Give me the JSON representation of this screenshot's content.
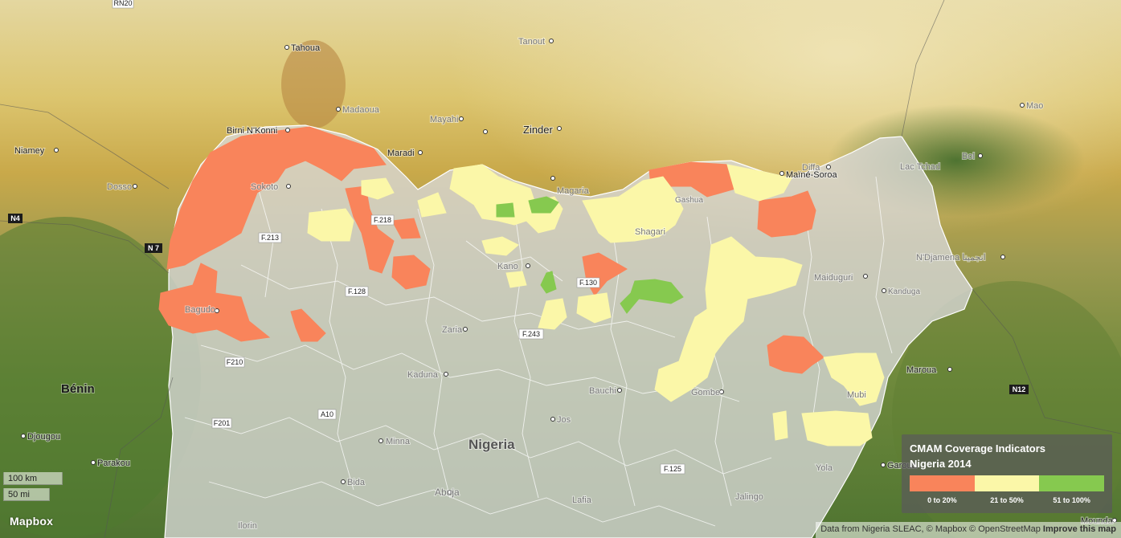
{
  "map": {
    "country_labels": [
      {
        "id": "nigeria",
        "text": "Nigeria"
      },
      {
        "id": "benin",
        "text": "Bénin"
      }
    ],
    "cities": [
      {
        "id": "tahoua",
        "text": "Tahoua"
      },
      {
        "id": "tanout",
        "text": "Tanout"
      },
      {
        "id": "madaoua",
        "text": "Madaoua"
      },
      {
        "id": "birni-nkonni",
        "text": "Birni N'Konni"
      },
      {
        "id": "mayahi",
        "text": "Mayahi"
      },
      {
        "id": "zinder",
        "text": "Zinder"
      },
      {
        "id": "maradi",
        "text": "Maradi"
      },
      {
        "id": "niamey",
        "text": "Niamey"
      },
      {
        "id": "dosso",
        "text": "Dosso"
      },
      {
        "id": "magaria",
        "text": "Magaria"
      },
      {
        "id": "diffa",
        "text": "Diffa"
      },
      {
        "id": "maine-soroa",
        "text": "Maïné-Soroa"
      },
      {
        "id": "lac-tchad",
        "text": "Lac Tchad"
      },
      {
        "id": "mao",
        "text": "Mao"
      },
      {
        "id": "bol",
        "text": "Bol"
      },
      {
        "id": "ndjamena",
        "text": "N'Djamena انجمينا"
      },
      {
        "id": "maiduguri",
        "text": "Maiduguri"
      },
      {
        "id": "kanduga",
        "text": "Kanduga"
      },
      {
        "id": "sokoto",
        "text": "Sokoto"
      },
      {
        "id": "kano",
        "text": "Kano"
      },
      {
        "id": "zaria",
        "text": "Zaria"
      },
      {
        "id": "kaduna",
        "text": "Kaduna"
      },
      {
        "id": "bauchi",
        "text": "Bauchi"
      },
      {
        "id": "gombe",
        "text": "Gombe"
      },
      {
        "id": "jos",
        "text": "Jos"
      },
      {
        "id": "minna",
        "text": "Minna"
      },
      {
        "id": "bida",
        "text": "Bida"
      },
      {
        "id": "abuja",
        "text": "Abuja"
      },
      {
        "id": "ilorin",
        "text": "Ilorin"
      },
      {
        "id": "lafia",
        "text": "Lafia"
      },
      {
        "id": "jalingo",
        "text": "Jalingo"
      },
      {
        "id": "yola",
        "text": "Yola"
      },
      {
        "id": "mubi",
        "text": "Mubi"
      },
      {
        "id": "maroua",
        "text": "Maroua"
      },
      {
        "id": "garoua",
        "text": "Garoua"
      },
      {
        "id": "mounda",
        "text": "Mounda"
      },
      {
        "id": "djougou",
        "text": "Djougou"
      },
      {
        "id": "parakou",
        "text": "Parakou"
      },
      {
        "id": "bagudo",
        "text": "Bagudo"
      },
      {
        "id": "shagari",
        "text": "Shagari"
      },
      {
        "id": "gashua",
        "text": "Gashua"
      }
    ],
    "roads": [
      {
        "id": "rn20",
        "text": "RN20"
      },
      {
        "id": "n4",
        "text": "N4"
      },
      {
        "id": "n7",
        "text": "N 7"
      },
      {
        "id": "f213",
        "text": "F.213"
      },
      {
        "id": "f218",
        "text": "F.218"
      },
      {
        "id": "f128",
        "text": "F.128"
      },
      {
        "id": "f130",
        "text": "F.130"
      },
      {
        "id": "f243",
        "text": "F.243"
      },
      {
        "id": "f210",
        "text": "F210"
      },
      {
        "id": "f201",
        "text": "F201"
      },
      {
        "id": "a10",
        "text": "A10"
      },
      {
        "id": "f125",
        "text": "F.125"
      },
      {
        "id": "n12",
        "text": "N12"
      }
    ]
  },
  "colors": {
    "low": "#f9845b",
    "mid": "#fbf7a8",
    "high": "#86c94f",
    "nigeria_overlay": "#d8d8d8"
  },
  "legend": {
    "title": "CMAM Coverage Indicators",
    "subtitle": "Nigeria 2014",
    "items": [
      {
        "label": "0 to 20%",
        "color": "#f9845b"
      },
      {
        "label": "21 to 50%",
        "color": "#fbf7a8"
      },
      {
        "label": "51 to 100%",
        "color": "#86c94f"
      }
    ]
  },
  "scale": {
    "km": "100 km",
    "mi": "50 mi"
  },
  "logo": "Mapbox",
  "attribution": {
    "prefix": "Data from Nigeria SLEAC, © ",
    "mapbox": "Mapbox",
    "sep": " © ",
    "osm": "OpenStreetMap",
    "improve": "Improve this map"
  }
}
